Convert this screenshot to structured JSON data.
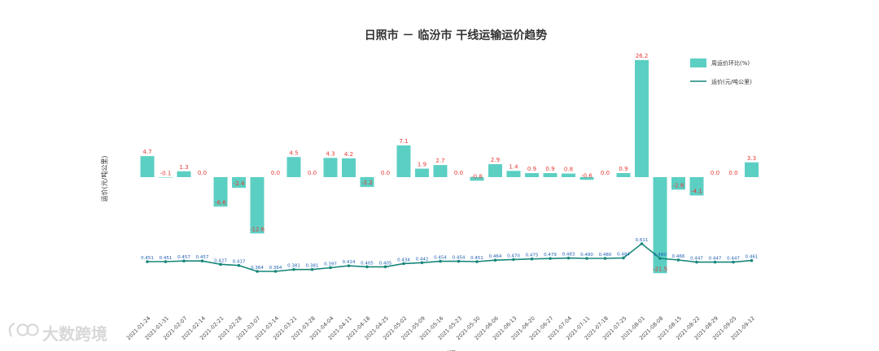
{
  "colors": {
    "bar": "#5ccfc3",
    "line": "#17877a",
    "bar_label": "#e53935",
    "point_label": "#1f5fb4",
    "watermark": "#d8d8d8"
  },
  "watermark": {
    "text": "大数跨境",
    "icon": "logo-mark-icon"
  },
  "chart_data": {
    "type": "bar+line",
    "title": "日照市 － 临汾市 干线运输运价趋势",
    "xlabel": "时间",
    "ylabel": "运价(元/吨公里)",
    "categories": [
      "2021-01-24",
      "2021-01-31",
      "2021-02-07",
      "2021-02-14",
      "2021-02-21",
      "2021-02-28",
      "2021-03-07",
      "2021-03-14",
      "2021-03-21",
      "2021-03-28",
      "2021-04-04",
      "2021-04-11",
      "2021-04-18",
      "2021-04-25",
      "2021-05-02",
      "2021-05-09",
      "2021-05-16",
      "2021-05-23",
      "2021-05-30",
      "2021-06-06",
      "2021-06-13",
      "2021-06-20",
      "2021-06-27",
      "2021-07-04",
      "2021-07-11",
      "2021-07-18",
      "2021-07-25",
      "2021-08-01",
      "2021-08-08",
      "2021-08-15",
      "2021-08-22",
      "2021-08-29",
      "2021-09-05",
      "2021-09-12"
    ],
    "series": [
      {
        "name": "周运价环比(%)",
        "type": "bar",
        "values": [
          4.7,
          -0.1,
          1.3,
          0.0,
          -6.6,
          -2.4,
          -12.6,
          0.0,
          4.5,
          0.0,
          4.3,
          4.2,
          -2.2,
          0.0,
          7.1,
          1.9,
          2.7,
          0.0,
          -0.8,
          2.9,
          1.4,
          0.9,
          0.9,
          0.8,
          -0.6,
          0.0,
          0.9,
          26.2,
          -21.5,
          -2.8,
          -4.1,
          0.0,
          0.0,
          3.3
        ],
        "labels": [
          "4.7",
          "-0.1",
          "1.3",
          "0.0",
          "-6.6",
          "-2.4",
          "-12.6",
          "0.0",
          "4.5",
          "0.0",
          "4.3",
          "4.2",
          "-2.2",
          "0.0",
          "7.1",
          "1.9",
          "2.7",
          "0.0",
          "-0.8",
          "2.9",
          "1.4",
          "0.9",
          "0.9",
          "0.8",
          "-0.6",
          "0.0",
          "0.9",
          "26.2",
          "-21.5",
          "-2.8",
          "-4.1",
          "0.0",
          "0.0",
          "3.3"
        ]
      },
      {
        "name": "运价(元/吨公里)",
        "type": "line",
        "values": [
          0.451,
          0.451,
          0.457,
          0.457,
          0.427,
          0.417,
          0.364,
          0.364,
          0.381,
          0.381,
          0.397,
          0.414,
          0.405,
          0.405,
          0.434,
          0.442,
          0.454,
          0.454,
          0.451,
          0.464,
          0.47,
          0.475,
          0.479,
          0.483,
          0.48,
          0.48,
          0.484,
          0.611,
          0.48,
          0.466,
          0.447,
          0.447,
          0.447,
          0.461
        ],
        "labels": [
          "0.451",
          "0.451",
          "0.457",
          "0.457",
          "0.427",
          "0.417",
          "0.364",
          "0.364",
          "0.381",
          "0.381",
          "0.397",
          "0.414",
          "0.405",
          "0.405",
          "0.434",
          "0.442",
          "0.454",
          "0.454",
          "0.451",
          "0.464",
          "0.470",
          "0.475",
          "0.479",
          "0.483",
          "0.480",
          "0.480",
          "0.484",
          "0.611",
          "0.480",
          "0.466",
          "0.447",
          "0.447",
          "0.447",
          "0.461"
        ]
      }
    ],
    "legend": {
      "position": "top-right",
      "items": [
        "周运价环比(%)",
        "运价(元/吨公里)"
      ]
    },
    "grid": false
  }
}
